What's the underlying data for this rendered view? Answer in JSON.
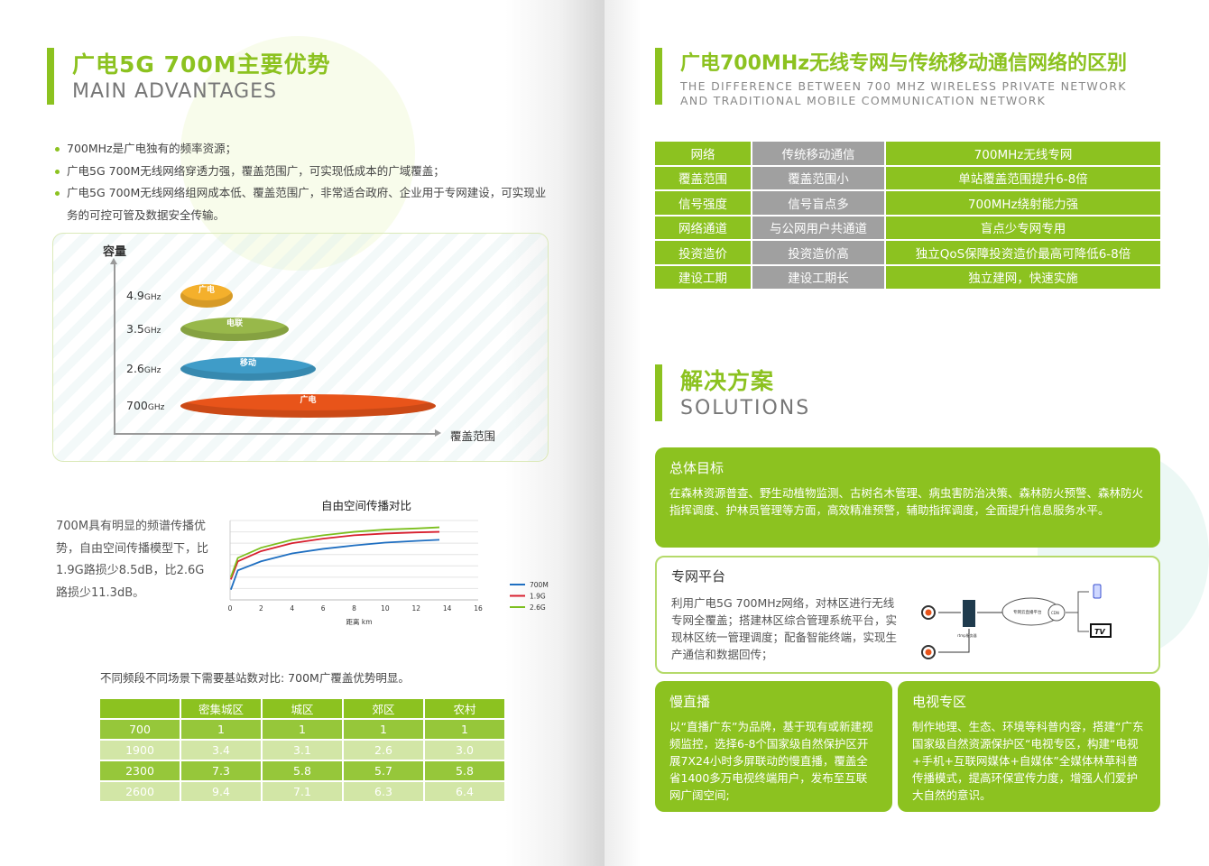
{
  "left": {
    "title": "广电5G 700M主要优势",
    "subtitle": "MAIN ADVANTAGES",
    "bullets": [
      "700MHz是广电独有的频率资源；",
      "广电5G 700M无线网络穿透力强，覆盖范围广，可实现低成本的广域覆盖；",
      "广电5G 700M无线网络组网成本低、覆盖范围广，非常适合政府、企业用于专网建设，可实现业务的可控可管及数据安全传输。"
    ],
    "capacity": {
      "y_label": "容量",
      "x_label": "覆盖范围",
      "unit": "GHz",
      "bands": [
        {
          "freq": "4.9",
          "operator": "广电",
          "color": "#f4b02c"
        },
        {
          "freq": "3.5",
          "operator": "电联",
          "color": "#98b84a"
        },
        {
          "freq": "2.6",
          "operator": "移动",
          "color": "#3f9cc8"
        },
        {
          "freq": "700",
          "operator": "广电",
          "color": "#e8541a"
        }
      ]
    },
    "propagation_text": "700M具有明显的频谱传播优势，自由空间传播模型下，比1.9G路损少8.5dB，比2.6G路损少11.3dB。",
    "table_caption": "不同频段不同场景下需要基站数对比: 700M广覆盖优势明显。",
    "table": {
      "headers": [
        "",
        "密集城区",
        "城区",
        "郊区",
        "农村"
      ],
      "rows": [
        [
          "700",
          "1",
          "1",
          "1",
          "1"
        ],
        [
          "1900",
          "3.4",
          "3.1",
          "2.6",
          "3.0"
        ],
        [
          "2300",
          "7.3",
          "5.8",
          "5.7",
          "5.8"
        ],
        [
          "2600",
          "9.4",
          "7.1",
          "6.3",
          "6.4"
        ]
      ]
    }
  },
  "chart_data": {
    "type": "line",
    "title": "自由空间传播对比",
    "xlabel": "距离 km",
    "ylabel": "",
    "xlim": [
      0,
      16
    ],
    "xticks": [
      0,
      2,
      4,
      6,
      8,
      10,
      12,
      14,
      16
    ],
    "ylim": [
      0,
      7
    ],
    "grid": true,
    "legend": "right",
    "series": [
      {
        "name": "700M",
        "color": "#1f6fc1",
        "x": [
          0.05,
          0.5,
          2,
          4,
          6,
          8,
          10,
          12,
          13.5
        ],
        "y": [
          0.9,
          2.6,
          3.4,
          4.1,
          4.5,
          4.8,
          5.05,
          5.2,
          5.3
        ]
      },
      {
        "name": "1.9G",
        "color": "#d8202f",
        "x": [
          0.05,
          0.5,
          2,
          4,
          6,
          8,
          10,
          12,
          13.5
        ],
        "y": [
          1.8,
          3.4,
          4.3,
          5.0,
          5.4,
          5.7,
          5.85,
          5.95,
          6.0
        ]
      },
      {
        "name": "2.6G",
        "color": "#7cbf1e",
        "x": [
          0.05,
          0.5,
          2,
          4,
          6,
          8,
          10,
          12,
          13.5
        ],
        "y": [
          2.0,
          3.7,
          4.6,
          5.3,
          5.7,
          6.0,
          6.2,
          6.3,
          6.4
        ]
      }
    ]
  },
  "right": {
    "title": "广电700MHz无线专网与传统移动通信网络的区别",
    "subtitle1": "THE DIFFERENCE BETWEEN 700 MHZ WIRELESS PRIVATE NETWORK",
    "subtitle2": "AND TRADITIONAL MOBILE COMMUNICATION NETWORK",
    "compare": [
      [
        "网络",
        "传统移动通信",
        "700MHz无线专网"
      ],
      [
        "覆盖范围",
        "覆盖范围小",
        "单站覆盖范围提升6-8倍"
      ],
      [
        "信号强度",
        "信号盲点多",
        "700MHz绕射能力强"
      ],
      [
        "网络通道",
        "与公网用户共通道",
        "盲点少专网专用"
      ],
      [
        "投资造价",
        "投资造价高",
        "独立QoS保障投资造价最高可降低6-8倍"
      ],
      [
        "建设工期",
        "建设工期长",
        "独立建网，快速实施"
      ]
    ],
    "solutions_title": "解决方案",
    "solutions_sub": "SOLUTIONS",
    "goal": {
      "title": "总体目标",
      "body": "在森林资源普查、野生动植物监测、古树名木管理、病虫害防治决策、森林防火预警、森林防火指挥调度、护林员管理等方面，高效精准预警，辅助指挥调度，全面提升信息服务水平。"
    },
    "platform": {
      "title": "专网平台",
      "body": "利用广电5G 700MHz网络，对林区进行无线专网全覆盖；搭建林区综合管理系统平台，实现林区统一管理调度；配备智能终端，实现生产通信和数据回传；",
      "diagram": {
        "cloud": "专网云直播平台",
        "cdn": "CDN",
        "server": "rtmp服务器",
        "tv": "TV"
      }
    },
    "slow_live": {
      "title": "慢直播",
      "body": "以“直播广东”为品牌，基于现有或新建视频监控，选择6-8个国家级自然保护区开展7X24小时多屏联动的慢直播，覆盖全省1400多万电视终端用户，发布至互联网广阔空间;"
    },
    "tv_zone": {
      "title": "电视专区",
      "body": "制作地理、生态、环境等科普内容，搭建“广东国家级自然资源保护区“电视专区，构建“电视+手机+互联网媒体+自媒体”全媒体林草科普传播模式，提高环保宣传力度，增强人们爱护大自然的意识。"
    }
  }
}
